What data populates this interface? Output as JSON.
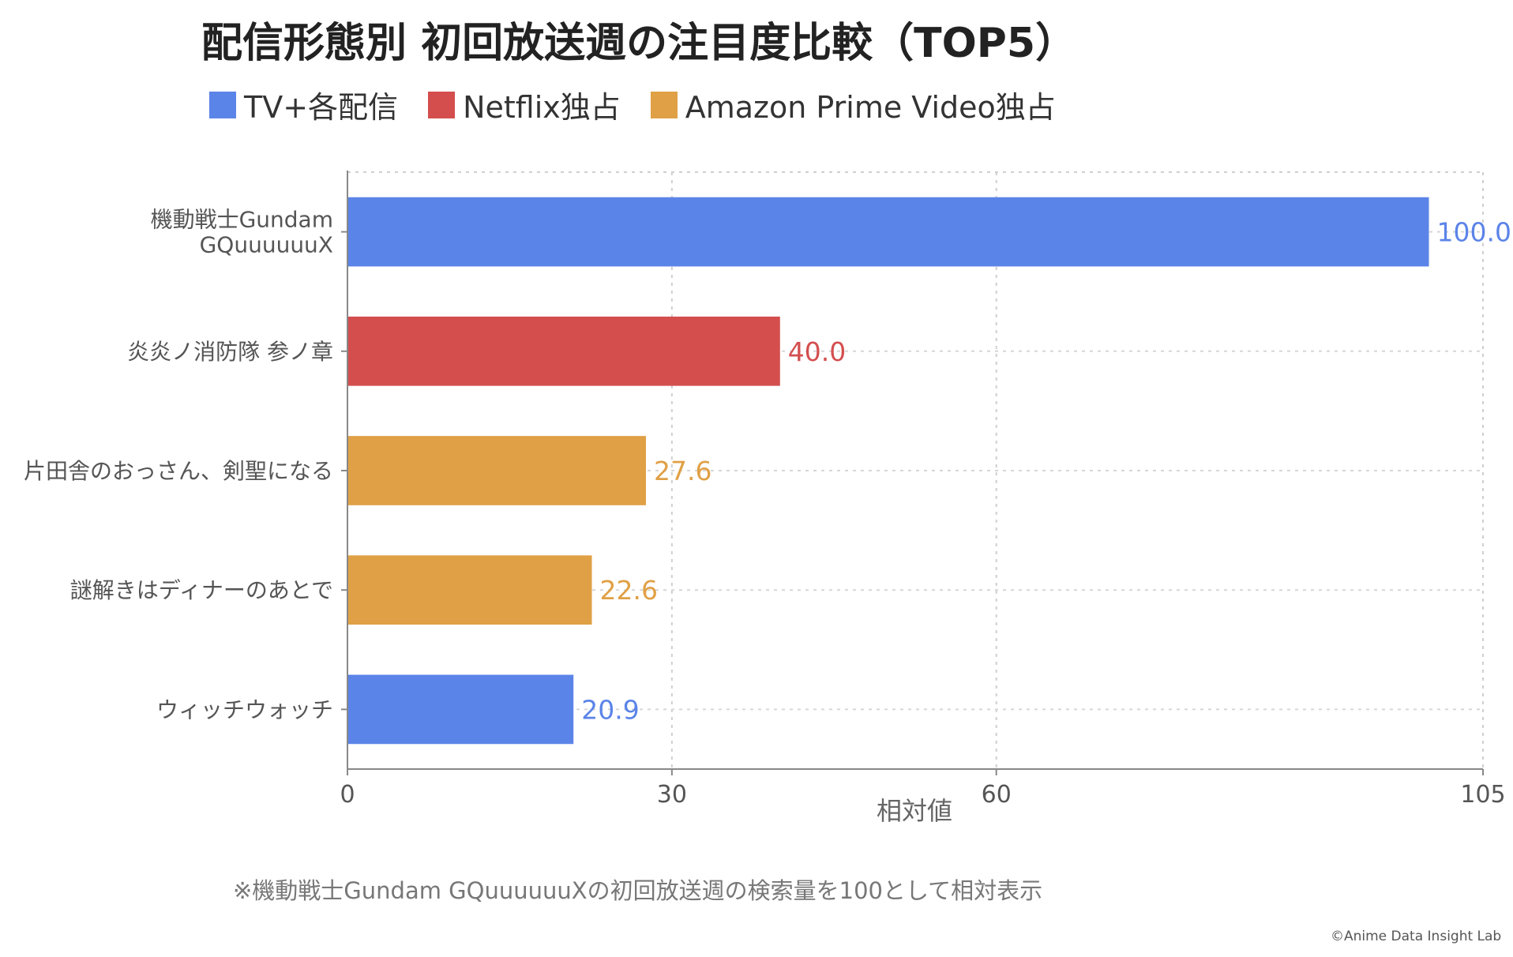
{
  "chart_data": {
    "type": "bar",
    "orientation": "horizontal",
    "title": "配信形態別 初回放送週の注目度比較（TOP5）",
    "categories": [
      "機動戦士Gundam\nGQuuuuuuX",
      "炎炎ノ消防隊 参ノ章",
      "片田舎のおっさん、剣聖になる",
      "謎解きはディナーのあとで",
      "ウィッチウォッチ"
    ],
    "values": [
      100.0,
      40.0,
      27.6,
      22.6,
      20.9
    ],
    "value_labels": [
      "100.0",
      "40.0",
      "27.6",
      "22.6",
      "20.9"
    ],
    "bar_groups": [
      0,
      1,
      2,
      2,
      0
    ],
    "legend": [
      {
        "name": "TV+各配信",
        "color": "#5B84E8"
      },
      {
        "name": "Netflix独占",
        "color": "#D44E4E"
      },
      {
        "name": "Amazon Prime Video独占",
        "color": "#E0A045"
      }
    ],
    "xlabel": "相対値",
    "ylabel": "",
    "xlim": [
      0,
      105
    ],
    "xticks": [
      0,
      30,
      60,
      105
    ],
    "grid": true,
    "legend_placement": "top-left"
  },
  "footnote": "※機動戦士Gundam GQuuuuuuXの初回放送週の検索量を100として相対表示",
  "credit": "©Anime Data Insight Lab"
}
